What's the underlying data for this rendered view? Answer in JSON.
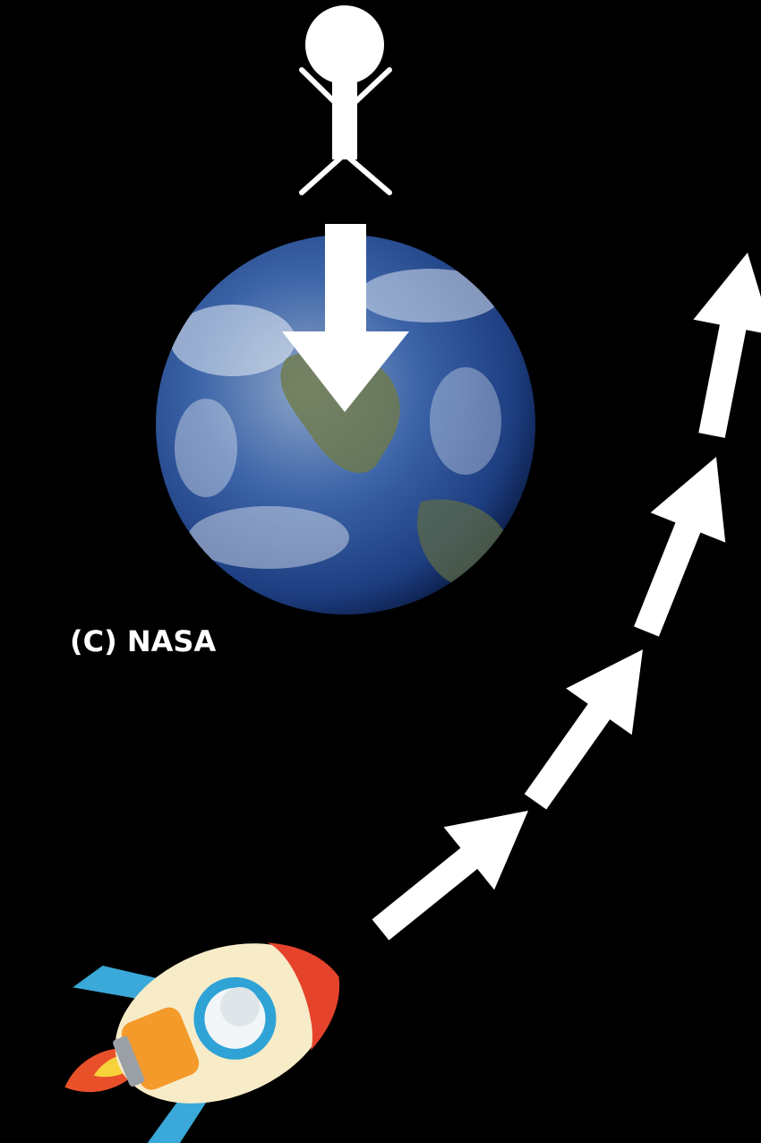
{
  "caption": "(C) NASA"
}
